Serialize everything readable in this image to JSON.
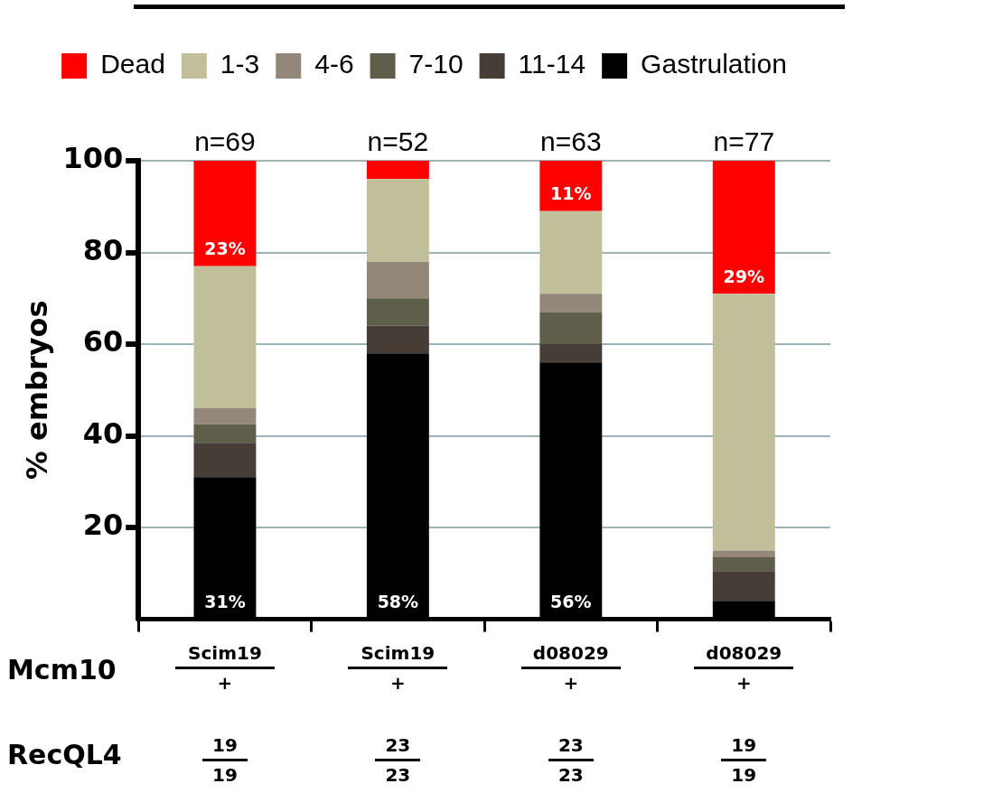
{
  "chart_data": {
    "type": "bar",
    "stacked": true,
    "ylabel": "% embryos",
    "categories": [
      null,
      null,
      null,
      null
    ],
    "series": [
      {
        "name": "Gastrulation",
        "color": "#000000",
        "values": [
          31,
          58,
          56,
          4
        ],
        "value_labels": [
          "31%",
          "58%",
          "56%",
          null
        ]
      },
      {
        "name": "11-14",
        "color": "#463d37",
        "values": [
          7.5,
          6,
          4,
          6.5
        ]
      },
      {
        "name": "7-10",
        "color": "#5f5e4a",
        "values": [
          4,
          6,
          7,
          3
        ]
      },
      {
        "name": "4-6",
        "color": "#938779",
        "values": [
          3.5,
          8,
          4,
          1.5
        ]
      },
      {
        "name": "1-3",
        "color": "#c0bf99",
        "values": [
          31,
          18,
          18,
          56
        ]
      },
      {
        "name": "Dead",
        "color": "#ff0000",
        "values": [
          23,
          4,
          11,
          29
        ],
        "value_labels": [
          "23%",
          null,
          "11%",
          "29%"
        ]
      }
    ],
    "ylim": [
      0,
      100
    ],
    "yticks": [
      20,
      40,
      60,
      80,
      100
    ],
    "grid": "y",
    "legend": "top",
    "annotations": [
      {
        "text": "n=69",
        "y": 100
      },
      {
        "text": "n=52",
        "y": 100
      },
      {
        "text": "n=63",
        "y": 100
      },
      {
        "text": "n=77",
        "y": 100
      },
      "Mcm10",
      "Scim19",
      "+",
      "Scim19",
      "+",
      "d08029",
      "+",
      "d08029",
      "+",
      "RecQL4",
      "19",
      "19",
      "23",
      "23",
      "23",
      "23",
      "19",
      "19"
    ]
  }
}
